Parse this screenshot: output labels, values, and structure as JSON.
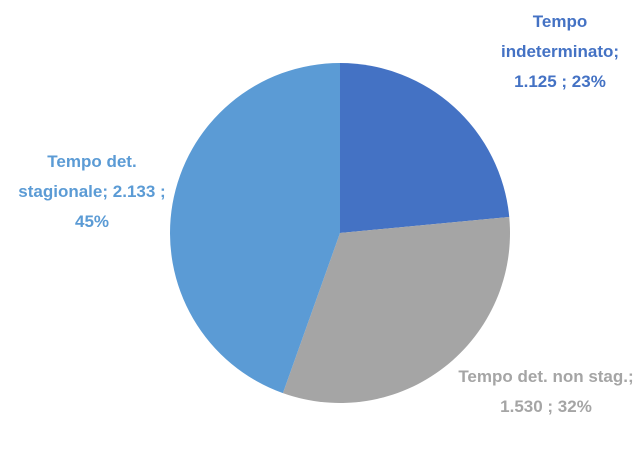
{
  "chart_data": {
    "type": "pie",
    "categories": [
      "Tempo indeterminato;",
      "Tempo det. non stag.;",
      "Tempo det. stagionale;"
    ],
    "values": [
      1125,
      1530,
      2133
    ],
    "value_labels": [
      "1.125 ; 23%",
      "1.530 ; 32%",
      "2.133 ; 45%"
    ],
    "colors": [
      "#4472c4",
      "#a5a5a5",
      "#5b9bd5"
    ]
  }
}
